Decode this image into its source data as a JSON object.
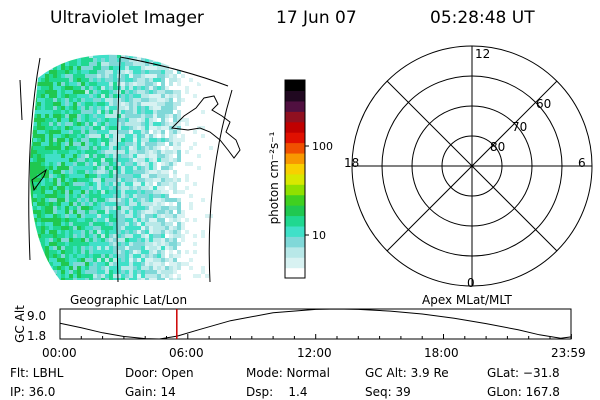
{
  "header": {
    "instrument": "Ultraviolet Imager",
    "date": "17 Jun 07",
    "time": "05:28:48 UT"
  },
  "colorbar": {
    "unit_label": "photon cm⁻²s⁻¹",
    "ticks": [
      "100",
      "10"
    ],
    "scale": "log",
    "colors": [
      "#ffffff",
      "#d8f2f2",
      "#b8e8e8",
      "#80d8d8",
      "#40e0c8",
      "#20d890",
      "#20c850",
      "#40d020",
      "#90e000",
      "#d8e800",
      "#f8d000",
      "#f89800",
      "#f05000",
      "#e01000",
      "#c00000",
      "#901020",
      "#501040",
      "#200820",
      "#000000"
    ]
  },
  "map": {
    "projection_label": "Geographic Lat/Lon",
    "aurora_colors": [
      "#ffffff",
      "#d8f2f2",
      "#b8e8e8",
      "#80d8d8",
      "#40e0c8",
      "#20d890",
      "#20c850"
    ]
  },
  "polar_plot": {
    "label": "Apex MLat/MLT",
    "mlt_labels": {
      "top": "12",
      "left": "18",
      "right": "6",
      "bottom": "0"
    },
    "lat_labels": [
      "60",
      "70",
      "80"
    ]
  },
  "orbit_plot": {
    "ylabel": "GC Alt",
    "ytick_labels": [
      "9.0",
      "1.8"
    ],
    "xtick_labels": [
      "00:00",
      "06:00",
      "12:00",
      "18:00",
      "23:59"
    ],
    "marker_color": "#cc0000"
  },
  "chart_data": {
    "type": "line",
    "x": [
      "00:00",
      "01:00",
      "02:00",
      "03:00",
      "04:00",
      "04:40",
      "05:30",
      "06:30",
      "08:00",
      "10:00",
      "12:00",
      "13:00",
      "14:00",
      "15:30",
      "17:00",
      "18:30",
      "20:00",
      "21:30",
      "22:30",
      "23:30",
      "23:59"
    ],
    "series": [
      {
        "values": [
          5.6,
          4.5,
          3.3,
          2.4,
          1.9,
          1.8,
          2.5,
          4.0,
          6.2,
          8.1,
          8.9,
          9.0,
          8.9,
          8.5,
          7.8,
          6.8,
          5.5,
          4.0,
          2.8,
          2.0,
          2.3
        ]
      }
    ],
    "ylim": [
      1.8,
      9.0
    ],
    "marker_time": "05:28:48"
  },
  "footer": {
    "flt": "Flt: LBHL",
    "ip": "IP: 36.0",
    "door": "Door: Open",
    "gain": "Gain: 14",
    "mode": "Mode: Normal",
    "dsp": "Dsp:    1.4",
    "gc_alt": "GC Alt: 3.9 Re",
    "seq": "Seq: 39",
    "glat": "GLat: −31.8",
    "glon": "GLon: 167.8"
  }
}
